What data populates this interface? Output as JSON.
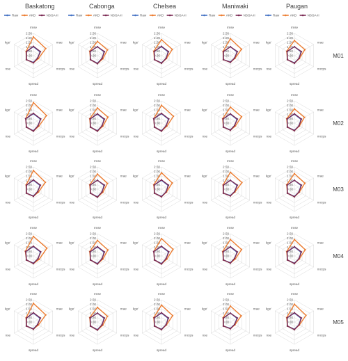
{
  "figure": {
    "columns": [
      "Baskatong",
      "Cabonga",
      "Chelsea",
      "Maniwaki",
      "Paugan"
    ],
    "rows": [
      "M01",
      "M02",
      "M03",
      "M04",
      "M05"
    ]
  },
  "chart_data": {
    "type": "radar",
    "axes": [
      "rmse",
      "mae",
      "mcrps",
      "spread",
      "nse",
      "kge'"
    ],
    "ticks": [
      "0.00",
      "0.50",
      "1.00",
      "1.50",
      "2.00",
      "2.50"
    ],
    "range": [
      0,
      2.5
    ],
    "legend": [
      "Raw",
      "AKD",
      "NSGA-II"
    ],
    "legend_position": "top",
    "colors": {
      "Raw": "#4472C4",
      "AKD": "#ED7D31",
      "NSGA-II": "#7B2A54"
    },
    "panels": [
      {
        "station": "Baskatong",
        "model": "M01",
        "series": {
          "Raw": [
            1.0,
            0.85,
            0.55,
            0.75,
            0.9,
            0.9
          ],
          "AKD": [
            2.1,
            1.6,
            0.65,
            0.8,
            0.9,
            0.95
          ],
          "NSGA-II": [
            1.05,
            0.9,
            0.55,
            0.8,
            0.9,
            0.9
          ]
        }
      },
      {
        "station": "Cabonga",
        "model": "M01",
        "series": {
          "Raw": [
            1.0,
            0.85,
            0.6,
            0.85,
            0.9,
            0.95
          ],
          "AKD": [
            1.6,
            1.3,
            0.7,
            0.9,
            0.9,
            1.0
          ],
          "NSGA-II": [
            1.0,
            0.9,
            0.6,
            0.9,
            0.9,
            0.95
          ]
        }
      },
      {
        "station": "Chelsea",
        "model": "M01",
        "series": {
          "Raw": [
            1.0,
            0.85,
            0.6,
            0.8,
            0.9,
            0.95
          ],
          "AKD": [
            1.8,
            1.4,
            0.65,
            0.85,
            0.9,
            1.0
          ],
          "NSGA-II": [
            1.05,
            0.9,
            0.6,
            0.85,
            0.9,
            0.95
          ]
        }
      },
      {
        "station": "Maniwaki",
        "model": "M01",
        "series": {
          "Raw": [
            1.0,
            0.85,
            0.55,
            0.7,
            0.9,
            0.9
          ],
          "AKD": [
            1.9,
            1.45,
            0.6,
            0.75,
            0.9,
            0.95
          ],
          "NSGA-II": [
            1.0,
            0.9,
            0.55,
            0.75,
            0.9,
            0.9
          ]
        }
      },
      {
        "station": "Paugan",
        "model": "M01",
        "series": {
          "Raw": [
            1.0,
            0.85,
            0.6,
            0.8,
            0.9,
            0.95
          ],
          "AKD": [
            1.7,
            1.35,
            0.65,
            0.85,
            0.9,
            1.0
          ],
          "NSGA-II": [
            1.0,
            0.9,
            0.6,
            0.85,
            0.9,
            0.95
          ]
        }
      },
      {
        "station": "Baskatong",
        "model": "M02",
        "series": {
          "Raw": [
            1.05,
            0.9,
            0.6,
            0.85,
            0.9,
            1.0
          ],
          "AKD": [
            2.3,
            1.7,
            0.7,
            0.9,
            0.9,
            1.0
          ],
          "NSGA-II": [
            1.1,
            0.95,
            0.6,
            0.9,
            0.9,
            1.0
          ]
        }
      },
      {
        "station": "Cabonga",
        "model": "M02",
        "series": {
          "Raw": [
            1.0,
            0.85,
            0.6,
            0.85,
            0.9,
            0.95
          ],
          "AKD": [
            1.7,
            1.35,
            0.7,
            0.9,
            0.9,
            1.0
          ],
          "NSGA-II": [
            1.05,
            0.9,
            0.6,
            0.9,
            0.9,
            0.95
          ]
        }
      },
      {
        "station": "Chelsea",
        "model": "M02",
        "series": {
          "Raw": [
            1.05,
            0.9,
            0.6,
            0.85,
            0.9,
            1.0
          ],
          "AKD": [
            2.0,
            1.55,
            0.7,
            0.9,
            0.9,
            1.0
          ],
          "NSGA-II": [
            1.1,
            0.95,
            0.6,
            0.9,
            0.9,
            1.0
          ]
        }
      },
      {
        "station": "Maniwaki",
        "model": "M02",
        "series": {
          "Raw": [
            1.0,
            0.85,
            0.55,
            0.75,
            0.9,
            0.95
          ],
          "AKD": [
            1.8,
            1.45,
            0.65,
            0.8,
            0.9,
            1.0
          ],
          "NSGA-II": [
            1.05,
            0.9,
            0.55,
            0.8,
            0.9,
            0.95
          ]
        }
      },
      {
        "station": "Paugan",
        "model": "M02",
        "series": {
          "Raw": [
            1.0,
            0.85,
            0.6,
            0.8,
            0.9,
            0.95
          ],
          "AKD": [
            1.6,
            1.3,
            0.65,
            0.85,
            0.9,
            1.0
          ],
          "NSGA-II": [
            1.05,
            0.9,
            0.6,
            0.85,
            0.9,
            0.95
          ]
        }
      },
      {
        "station": "Baskatong",
        "model": "M03",
        "series": {
          "Raw": [
            1.0,
            0.85,
            0.55,
            0.75,
            0.9,
            0.9
          ],
          "AKD": [
            2.1,
            1.55,
            0.65,
            0.8,
            0.9,
            0.95
          ],
          "NSGA-II": [
            1.05,
            0.9,
            0.55,
            0.8,
            0.9,
            0.9
          ]
        }
      },
      {
        "station": "Cabonga",
        "model": "M03",
        "series": {
          "Raw": [
            1.0,
            0.85,
            0.6,
            0.85,
            0.9,
            0.95
          ],
          "AKD": [
            1.7,
            1.3,
            0.7,
            0.9,
            0.9,
            1.0
          ],
          "NSGA-II": [
            1.0,
            0.9,
            0.6,
            0.9,
            0.9,
            0.95
          ]
        }
      },
      {
        "station": "Chelsea",
        "model": "M03",
        "series": {
          "Raw": [
            1.0,
            0.85,
            0.6,
            0.8,
            0.9,
            0.95
          ],
          "AKD": [
            1.85,
            1.4,
            0.65,
            0.85,
            0.9,
            1.0
          ],
          "NSGA-II": [
            1.05,
            0.9,
            0.6,
            0.85,
            0.9,
            0.95
          ]
        }
      },
      {
        "station": "Maniwaki",
        "model": "M03",
        "series": {
          "Raw": [
            1.0,
            0.85,
            0.55,
            0.7,
            0.9,
            0.9
          ],
          "AKD": [
            1.9,
            1.5,
            0.6,
            0.75,
            0.9,
            0.95
          ],
          "NSGA-II": [
            1.0,
            0.9,
            0.55,
            0.75,
            0.9,
            0.9
          ]
        }
      },
      {
        "station": "Paugan",
        "model": "M03",
        "series": {
          "Raw": [
            1.0,
            0.85,
            0.6,
            0.8,
            0.9,
            0.95
          ],
          "AKD": [
            1.75,
            1.35,
            0.65,
            0.85,
            0.9,
            1.0
          ],
          "NSGA-II": [
            1.0,
            0.9,
            0.6,
            0.85,
            0.9,
            0.95
          ]
        }
      },
      {
        "station": "Baskatong",
        "model": "M04",
        "series": {
          "Raw": [
            1.05,
            0.9,
            0.6,
            0.8,
            0.9,
            1.0
          ],
          "AKD": [
            2.2,
            1.75,
            0.75,
            0.85,
            0.9,
            1.05
          ],
          "NSGA-II": [
            1.1,
            0.95,
            0.6,
            0.85,
            0.9,
            1.0
          ]
        }
      },
      {
        "station": "Cabonga",
        "model": "M04",
        "series": {
          "Raw": [
            1.0,
            0.85,
            0.6,
            0.85,
            0.9,
            0.95
          ],
          "AKD": [
            1.75,
            1.35,
            0.7,
            0.9,
            0.9,
            1.0
          ],
          "NSGA-II": [
            1.05,
            0.9,
            0.6,
            0.9,
            0.9,
            0.95
          ]
        }
      },
      {
        "station": "Chelsea",
        "model": "M04",
        "series": {
          "Raw": [
            1.05,
            0.9,
            0.6,
            0.85,
            0.9,
            1.0
          ],
          "AKD": [
            1.95,
            1.5,
            0.7,
            0.9,
            0.9,
            1.0
          ],
          "NSGA-II": [
            1.1,
            0.95,
            0.6,
            0.9,
            0.9,
            1.0
          ]
        }
      },
      {
        "station": "Maniwaki",
        "model": "M04",
        "series": {
          "Raw": [
            1.0,
            0.85,
            0.55,
            0.75,
            0.9,
            0.95
          ],
          "AKD": [
            1.85,
            1.45,
            0.65,
            0.8,
            0.9,
            1.0
          ],
          "NSGA-II": [
            1.05,
            0.9,
            0.55,
            0.8,
            0.9,
            0.95
          ]
        }
      },
      {
        "station": "Paugan",
        "model": "M04",
        "series": {
          "Raw": [
            1.0,
            0.85,
            0.6,
            0.8,
            0.9,
            0.95
          ],
          "AKD": [
            1.85,
            1.4,
            0.65,
            0.85,
            0.9,
            1.0
          ],
          "NSGA-II": [
            1.05,
            0.9,
            0.6,
            0.85,
            0.9,
            0.95
          ]
        }
      },
      {
        "station": "Baskatong",
        "model": "M05",
        "series": {
          "Raw": [
            1.0,
            0.85,
            0.55,
            0.75,
            0.9,
            0.9
          ],
          "AKD": [
            2.1,
            1.6,
            0.65,
            0.8,
            0.9,
            0.95
          ],
          "NSGA-II": [
            1.05,
            0.9,
            0.55,
            0.8,
            0.9,
            0.9
          ]
        }
      },
      {
        "station": "Cabonga",
        "model": "M05",
        "series": {
          "Raw": [
            1.0,
            0.85,
            0.6,
            0.85,
            0.9,
            0.95
          ],
          "AKD": [
            1.65,
            1.3,
            0.7,
            0.9,
            0.9,
            1.0
          ],
          "NSGA-II": [
            1.0,
            0.9,
            0.6,
            0.9,
            0.9,
            0.95
          ]
        }
      },
      {
        "station": "Chelsea",
        "model": "M05",
        "series": {
          "Raw": [
            1.0,
            0.85,
            0.6,
            0.8,
            0.9,
            0.95
          ],
          "AKD": [
            1.9,
            1.45,
            0.65,
            0.85,
            0.9,
            1.0
          ],
          "NSGA-II": [
            1.05,
            0.9,
            0.6,
            0.85,
            0.9,
            0.95
          ]
        }
      },
      {
        "station": "Maniwaki",
        "model": "M05",
        "series": {
          "Raw": [
            1.0,
            0.85,
            0.55,
            0.7,
            0.9,
            0.9
          ],
          "AKD": [
            1.8,
            1.4,
            0.6,
            0.75,
            0.9,
            0.95
          ],
          "NSGA-II": [
            1.0,
            0.9,
            0.55,
            0.75,
            0.9,
            0.9
          ]
        }
      },
      {
        "station": "Paugan",
        "model": "M05",
        "series": {
          "Raw": [
            1.0,
            0.85,
            0.6,
            0.8,
            0.9,
            0.95
          ],
          "AKD": [
            2.0,
            1.5,
            0.65,
            0.85,
            0.9,
            1.0
          ],
          "NSGA-II": [
            1.05,
            0.9,
            0.6,
            0.85,
            0.9,
            0.95
          ]
        }
      }
    ]
  }
}
